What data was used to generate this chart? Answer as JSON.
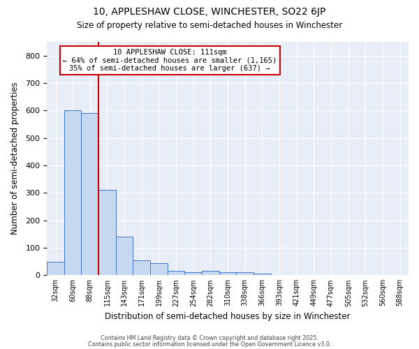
{
  "title1": "10, APPLESHAW CLOSE, WINCHESTER, SO22 6JP",
  "title2": "Size of property relative to semi-detached houses in Winchester",
  "xlabel": "Distribution of semi-detached houses by size in Winchester",
  "ylabel": "Number of semi-detached properties",
  "bar_color": "#c6d9f0",
  "bar_edge_color": "#4472c4",
  "background_color": "#e8eef7",
  "bin_labels": [
    "32sqm",
    "60sqm",
    "88sqm",
    "115sqm",
    "143sqm",
    "171sqm",
    "199sqm",
    "227sqm",
    "254sqm",
    "282sqm",
    "310sqm",
    "338sqm",
    "366sqm",
    "393sqm",
    "421sqm",
    "449sqm",
    "477sqm",
    "505sqm",
    "532sqm",
    "560sqm",
    "588sqm"
  ],
  "bar_heights": [
    50,
    600,
    590,
    310,
    140,
    55,
    45,
    15,
    10,
    15,
    10,
    10,
    5,
    0,
    0,
    0,
    0,
    0,
    0,
    0,
    0
  ],
  "annotation_title": "10 APPLESHAW CLOSE: 111sqm",
  "annotation_line2": "← 64% of semi-detached houses are smaller (1,165)",
  "annotation_line3": "35% of semi-detached houses are larger (637) →",
  "vline_color": "#cc0000",
  "box_edge_color": "#cc0000",
  "footer1": "Contains HM Land Registry data © Crown copyright and database right 2025.",
  "footer2": "Contains public sector information licensed under the Open Government Licence v3.0.",
  "ylim": [
    0,
    850
  ],
  "yticks": [
    0,
    100,
    200,
    300,
    400,
    500,
    600,
    700,
    800
  ]
}
